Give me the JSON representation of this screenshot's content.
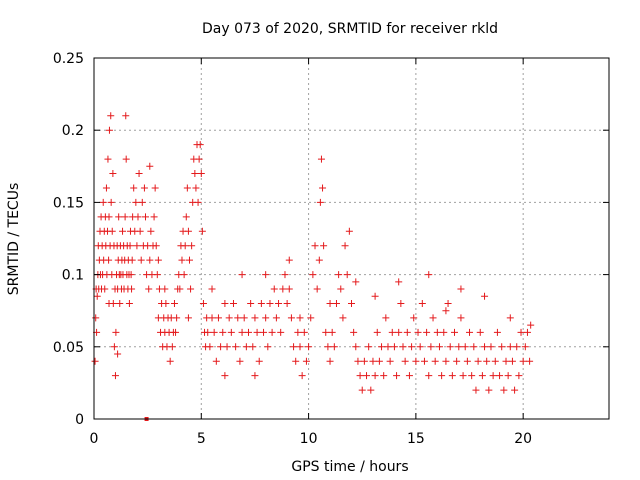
{
  "chart_data": {
    "type": "scatter",
    "title": "Day 073 of 2020, SRMTID for receiver rkld",
    "xlabel": "GPS time / hours",
    "ylabel": "SRMTID / TECUs",
    "xlim": [
      0,
      24
    ],
    "ylim": [
      0,
      0.25
    ],
    "xticks": [
      0,
      5,
      10,
      15,
      20
    ],
    "yticks": [
      0,
      0.05,
      0.1,
      0.15,
      0.2,
      0.25
    ],
    "xtick_labels": [
      "0",
      "5",
      "10",
      "15",
      "20"
    ],
    "ytick_labels": [
      "0",
      "0.05",
      "0.1",
      "0.15",
      "0.2",
      "0.25"
    ],
    "grid": true,
    "color": "#e41a1c",
    "marker": "plus",
    "series": [
      {
        "values_note_free": true,
        "points": [
          [
            0.05,
            0.04
          ],
          [
            0.08,
            0.07
          ],
          [
            0.1,
            0.09
          ],
          [
            0.12,
            0.06
          ],
          [
            0.15,
            0.085
          ],
          [
            0.18,
            0.1
          ],
          [
            0.2,
            0.12
          ],
          [
            0.22,
            0.09
          ],
          [
            0.25,
            0.11
          ],
          [
            0.28,
            0.13
          ],
          [
            0.3,
            0.1
          ],
          [
            0.33,
            0.14
          ],
          [
            0.35,
            0.09
          ],
          [
            0.38,
            0.12
          ],
          [
            0.4,
            0.1
          ],
          [
            0.43,
            0.15
          ],
          [
            0.45,
            0.11
          ],
          [
            0.48,
            0.13
          ],
          [
            0.5,
            0.09
          ],
          [
            0.53,
            0.14
          ],
          [
            0.55,
            0.12
          ],
          [
            0.58,
            0.16
          ],
          [
            0.6,
            0.1
          ],
          [
            0.63,
            0.13
          ],
          [
            0.65,
            0.18
          ],
          [
            0.68,
            0.11
          ],
          [
            0.7,
            0.14
          ],
          [
            0.72,
            0.2
          ],
          [
            0.75,
            0.12
          ],
          [
            0.78,
            0.21
          ],
          [
            0.8,
            0.15
          ],
          [
            0.83,
            0.1
          ],
          [
            0.85,
            0.13
          ],
          [
            0.88,
            0.17
          ],
          [
            0.9,
            0.08
          ],
          [
            0.93,
            0.12
          ],
          [
            0.95,
            0.05
          ],
          [
            0.98,
            0.09
          ],
          [
            1.0,
            0.03
          ],
          [
            1.02,
            0.06
          ],
          [
            1.05,
            0.1
          ],
          [
            1.08,
            0.12
          ],
          [
            1.1,
            0.09
          ],
          [
            1.13,
            0.11
          ],
          [
            1.15,
            0.14
          ],
          [
            1.18,
            0.1
          ],
          [
            1.2,
            0.08
          ],
          [
            1.23,
            0.12
          ],
          [
            1.25,
            0.1
          ],
          [
            1.28,
            0.09
          ],
          [
            1.3,
            0.11
          ],
          [
            1.33,
            0.13
          ],
          [
            1.35,
            0.1
          ],
          [
            1.38,
            0.12
          ],
          [
            1.4,
            0.09
          ],
          [
            1.43,
            0.11
          ],
          [
            1.45,
            0.14
          ],
          [
            1.48,
            0.21
          ],
          [
            1.5,
            0.18
          ],
          [
            1.53,
            0.1
          ],
          [
            1.55,
            0.12
          ],
          [
            1.58,
            0.09
          ],
          [
            1.6,
            0.11
          ],
          [
            1.63,
            0.1
          ],
          [
            1.65,
            0.08
          ],
          [
            1.68,
            0.12
          ],
          [
            1.7,
            0.13
          ],
          [
            1.73,
            0.1
          ],
          [
            1.75,
            0.09
          ],
          [
            1.78,
            0.11
          ],
          [
            1.8,
            0.14
          ],
          [
            1.85,
            0.16
          ],
          [
            1.9,
            0.13
          ],
          [
            1.95,
            0.15
          ],
          [
            2.0,
            0.12
          ],
          [
            2.05,
            0.14
          ],
          [
            2.1,
            0.17
          ],
          [
            2.15,
            0.13
          ],
          [
            2.2,
            0.11
          ],
          [
            2.25,
            0.15
          ],
          [
            2.3,
            0.12
          ],
          [
            2.35,
            0.16
          ],
          [
            2.4,
            0.14
          ],
          [
            2.45,
            0.1
          ],
          [
            2.5,
            0.12
          ],
          [
            2.55,
            0.09
          ],
          [
            2.6,
            0.11
          ],
          [
            2.65,
            0.13
          ],
          [
            2.7,
            0.1
          ],
          [
            2.75,
            0.12
          ],
          [
            2.8,
            0.14
          ],
          [
            2.85,
            0.16
          ],
          [
            2.9,
            0.12
          ],
          [
            2.95,
            0.1
          ],
          [
            3.0,
            0.07
          ],
          [
            3.05,
            0.09
          ],
          [
            3.1,
            0.06
          ],
          [
            3.15,
            0.08
          ],
          [
            3.2,
            0.05
          ],
          [
            3.25,
            0.07
          ],
          [
            3.3,
            0.06
          ],
          [
            3.35,
            0.08
          ],
          [
            3.4,
            0.05
          ],
          [
            3.45,
            0.07
          ],
          [
            3.5,
            0.06
          ],
          [
            3.55,
            0.04
          ],
          [
            3.6,
            0.07
          ],
          [
            3.65,
            0.05
          ],
          [
            3.7,
            0.06
          ],
          [
            3.75,
            0.08
          ],
          [
            3.8,
            0.06
          ],
          [
            3.85,
            0.07
          ],
          [
            3.9,
            0.09
          ],
          [
            3.95,
            0.1
          ],
          [
            4.0,
            0.09
          ],
          [
            4.05,
            0.12
          ],
          [
            4.1,
            0.11
          ],
          [
            4.15,
            0.13
          ],
          [
            4.2,
            0.1
          ],
          [
            4.25,
            0.12
          ],
          [
            4.3,
            0.14
          ],
          [
            4.35,
            0.16
          ],
          [
            4.4,
            0.13
          ],
          [
            4.45,
            0.11
          ],
          [
            4.5,
            0.09
          ],
          [
            4.55,
            0.12
          ],
          [
            4.6,
            0.15
          ],
          [
            4.65,
            0.18
          ],
          [
            4.7,
            0.17
          ],
          [
            4.75,
            0.16
          ],
          [
            4.8,
            0.19
          ],
          [
            4.85,
            0.15
          ],
          [
            4.9,
            0.18
          ],
          [
            4.95,
            0.19
          ],
          [
            5.0,
            0.17
          ],
          [
            5.05,
            0.13
          ],
          [
            5.1,
            0.08
          ],
          [
            5.15,
            0.06
          ],
          [
            5.2,
            0.05
          ],
          [
            5.25,
            0.07
          ],
          [
            5.3,
            0.06
          ],
          [
            5.4,
            0.05
          ],
          [
            5.5,
            0.07
          ],
          [
            5.6,
            0.06
          ],
          [
            5.7,
            0.04
          ],
          [
            5.8,
            0.07
          ],
          [
            5.9,
            0.05
          ],
          [
            6.0,
            0.06
          ],
          [
            6.1,
            0.08
          ],
          [
            6.2,
            0.05
          ],
          [
            6.3,
            0.07
          ],
          [
            6.4,
            0.06
          ],
          [
            6.5,
            0.08
          ],
          [
            6.6,
            0.05
          ],
          [
            6.7,
            0.07
          ],
          [
            6.8,
            0.04
          ],
          [
            6.9,
            0.06
          ],
          [
            7.0,
            0.07
          ],
          [
            7.1,
            0.05
          ],
          [
            7.2,
            0.06
          ],
          [
            7.3,
            0.08
          ],
          [
            7.4,
            0.05
          ],
          [
            7.5,
            0.07
          ],
          [
            7.6,
            0.06
          ],
          [
            7.7,
            0.04
          ],
          [
            7.8,
            0.08
          ],
          [
            7.9,
            0.06
          ],
          [
            8.0,
            0.07
          ],
          [
            8.1,
            0.05
          ],
          [
            8.2,
            0.08
          ],
          [
            8.3,
            0.06
          ],
          [
            8.4,
            0.09
          ],
          [
            8.5,
            0.07
          ],
          [
            8.6,
            0.08
          ],
          [
            8.7,
            0.06
          ],
          [
            8.8,
            0.09
          ],
          [
            8.9,
            0.1
          ],
          [
            9.0,
            0.08
          ],
          [
            9.1,
            0.09
          ],
          [
            9.2,
            0.07
          ],
          [
            9.3,
            0.05
          ],
          [
            9.4,
            0.04
          ],
          [
            9.5,
            0.06
          ],
          [
            9.6,
            0.05
          ],
          [
            9.7,
            0.03
          ],
          [
            9.8,
            0.06
          ],
          [
            9.9,
            0.04
          ],
          [
            10.0,
            0.05
          ],
          [
            10.1,
            0.07
          ],
          [
            10.2,
            0.1
          ],
          [
            10.3,
            0.12
          ],
          [
            10.4,
            0.09
          ],
          [
            10.5,
            0.11
          ],
          [
            10.55,
            0.15
          ],
          [
            10.6,
            0.18
          ],
          [
            10.65,
            0.16
          ],
          [
            10.7,
            0.12
          ],
          [
            10.8,
            0.06
          ],
          [
            10.9,
            0.05
          ],
          [
            11.0,
            0.04
          ],
          [
            11.1,
            0.06
          ],
          [
            11.2,
            0.05
          ],
          [
            11.3,
            0.08
          ],
          [
            11.4,
            0.1
          ],
          [
            11.5,
            0.09
          ],
          [
            11.6,
            0.07
          ],
          [
            11.7,
            0.12
          ],
          [
            11.8,
            0.1
          ],
          [
            11.9,
            0.13
          ],
          [
            12.0,
            0.08
          ],
          [
            12.1,
            0.06
          ],
          [
            12.2,
            0.05
          ],
          [
            12.3,
            0.04
          ],
          [
            12.4,
            0.03
          ],
          [
            12.5,
            0.02
          ],
          [
            12.6,
            0.04
          ],
          [
            12.7,
            0.03
          ],
          [
            12.8,
            0.05
          ],
          [
            12.9,
            0.02
          ],
          [
            13.0,
            0.04
          ],
          [
            13.1,
            0.03
          ],
          [
            13.2,
            0.06
          ],
          [
            13.3,
            0.04
          ],
          [
            13.4,
            0.05
          ],
          [
            13.5,
            0.03
          ],
          [
            13.6,
            0.07
          ],
          [
            13.7,
            0.05
          ],
          [
            13.8,
            0.04
          ],
          [
            13.9,
            0.06
          ],
          [
            14.0,
            0.05
          ],
          [
            14.1,
            0.03
          ],
          [
            14.2,
            0.06
          ],
          [
            14.3,
            0.08
          ],
          [
            14.4,
            0.05
          ],
          [
            14.5,
            0.04
          ],
          [
            14.6,
            0.06
          ],
          [
            14.7,
            0.03
          ],
          [
            14.8,
            0.05
          ],
          [
            14.9,
            0.07
          ],
          [
            15.0,
            0.04
          ],
          [
            15.1,
            0.06
          ],
          [
            15.2,
            0.05
          ],
          [
            15.3,
            0.08
          ],
          [
            15.4,
            0.04
          ],
          [
            15.5,
            0.06
          ],
          [
            15.6,
            0.03
          ],
          [
            15.7,
            0.05
          ],
          [
            15.8,
            0.07
          ],
          [
            15.9,
            0.04
          ],
          [
            16.0,
            0.06
          ],
          [
            16.1,
            0.05
          ],
          [
            16.2,
            0.03
          ],
          [
            16.3,
            0.06
          ],
          [
            16.4,
            0.04
          ],
          [
            16.5,
            0.08
          ],
          [
            16.6,
            0.05
          ],
          [
            16.7,
            0.03
          ],
          [
            16.8,
            0.06
          ],
          [
            16.9,
            0.04
          ],
          [
            17.0,
            0.05
          ],
          [
            17.1,
            0.07
          ],
          [
            17.2,
            0.03
          ],
          [
            17.3,
            0.05
          ],
          [
            17.4,
            0.04
          ],
          [
            17.5,
            0.06
          ],
          [
            17.6,
            0.03
          ],
          [
            17.7,
            0.05
          ],
          [
            17.8,
            0.02
          ],
          [
            17.9,
            0.04
          ],
          [
            18.0,
            0.06
          ],
          [
            18.1,
            0.03
          ],
          [
            18.2,
            0.05
          ],
          [
            18.3,
            0.04
          ],
          [
            18.4,
            0.02
          ],
          [
            18.5,
            0.05
          ],
          [
            18.6,
            0.03
          ],
          [
            18.7,
            0.04
          ],
          [
            18.8,
            0.06
          ],
          [
            18.9,
            0.03
          ],
          [
            19.0,
            0.05
          ],
          [
            19.1,
            0.02
          ],
          [
            19.2,
            0.04
          ],
          [
            19.3,
            0.03
          ],
          [
            19.4,
            0.05
          ],
          [
            19.5,
            0.04
          ],
          [
            19.6,
            0.02
          ],
          [
            19.7,
            0.05
          ],
          [
            19.8,
            0.03
          ],
          [
            19.9,
            0.06
          ],
          [
            20.0,
            0.04
          ],
          [
            20.1,
            0.05
          ],
          [
            20.2,
            0.06
          ],
          [
            20.3,
            0.04
          ],
          [
            20.35,
            0.065
          ],
          [
            0.7,
            0.08
          ],
          [
            1.1,
            0.045
          ],
          [
            2.6,
            0.175
          ],
          [
            3.0,
            0.11
          ],
          [
            3.3,
            0.09
          ],
          [
            4.4,
            0.07
          ],
          [
            5.5,
            0.09
          ],
          [
            6.1,
            0.03
          ],
          [
            6.9,
            0.1
          ],
          [
            7.5,
            0.03
          ],
          [
            8.0,
            0.1
          ],
          [
            9.1,
            0.11
          ],
          [
            9.6,
            0.07
          ],
          [
            11.0,
            0.08
          ],
          [
            12.2,
            0.095
          ],
          [
            13.1,
            0.085
          ],
          [
            14.2,
            0.095
          ],
          [
            15.6,
            0.1
          ],
          [
            16.4,
            0.075
          ],
          [
            17.1,
            0.09
          ],
          [
            18.2,
            0.085
          ],
          [
            19.4,
            0.07
          ]
        ]
      }
    ],
    "extra_marker": {
      "x": 2.45,
      "y": 0.0
    }
  }
}
